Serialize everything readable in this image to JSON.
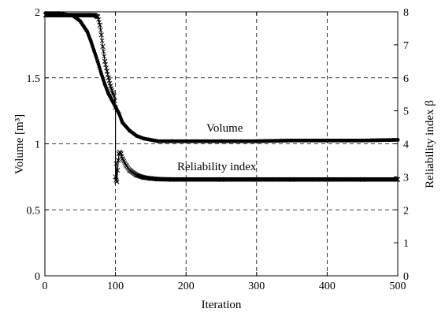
{
  "chart_data": {
    "type": "line",
    "title": "",
    "xlabel": "Iteration",
    "ylabel_left": "Volume [m³]",
    "ylabel_right": "Reliability index β",
    "xlim": [
      0,
      500
    ],
    "ylim_left": [
      0,
      2
    ],
    "ylim_right": [
      0,
      8
    ],
    "x_ticks": [
      0,
      100,
      200,
      300,
      400,
      500
    ],
    "y_left_ticks": [
      0,
      0.5,
      1,
      1.5,
      2
    ],
    "y_left_tick_labels": [
      "0",
      "0.5",
      "1",
      "1.5",
      "2"
    ],
    "y_right_ticks": [
      0,
      1,
      2,
      3,
      4,
      5,
      6,
      7,
      8
    ],
    "grid": "dashed",
    "annotations": [
      "Volume",
      "Reliability index"
    ],
    "series": [
      {
        "name": "Volume",
        "axis": "left",
        "marker": "dot",
        "x": [
          1,
          20,
          40,
          50,
          60,
          65,
          70,
          75,
          80,
          85,
          90,
          95,
          100,
          105,
          110,
          120,
          130,
          140,
          150,
          160,
          180,
          200,
          250,
          300,
          350,
          400,
          450,
          500
        ],
        "y": [
          1.99,
          1.99,
          1.97,
          1.93,
          1.85,
          1.78,
          1.7,
          1.62,
          1.53,
          1.45,
          1.38,
          1.33,
          1.28,
          1.23,
          1.16,
          1.1,
          1.06,
          1.04,
          1.03,
          1.02,
          1.02,
          1.02,
          1.02,
          1.02,
          1.025,
          1.025,
          1.025,
          1.03
        ]
      },
      {
        "name": "Reliability index",
        "axis": "right",
        "marker": "x",
        "x": [
          1,
          20,
          40,
          60,
          70,
          75,
          78,
          80,
          82,
          85,
          88,
          90,
          93,
          96,
          98,
          99,
          100,
          100,
          101,
          101,
          102,
          103,
          104,
          105,
          106,
          108,
          110,
          115,
          120,
          130,
          140,
          150,
          160,
          180,
          200,
          250,
          300,
          350,
          400,
          450,
          500
        ],
        "y": [
          7.9,
          7.9,
          7.9,
          7.9,
          7.9,
          7.85,
          7.6,
          7.3,
          6.95,
          6.5,
          6.2,
          6.0,
          5.75,
          5.55,
          5.45,
          5.3,
          5.1,
          3.0,
          2.9,
          3.4,
          2.85,
          3.2,
          3.5,
          3.7,
          3.75,
          3.7,
          3.55,
          3.35,
          3.2,
          3.05,
          2.98,
          2.95,
          2.93,
          2.92,
          2.92,
          2.92,
          2.92,
          2.92,
          2.92,
          2.92,
          2.92
        ]
      }
    ]
  }
}
